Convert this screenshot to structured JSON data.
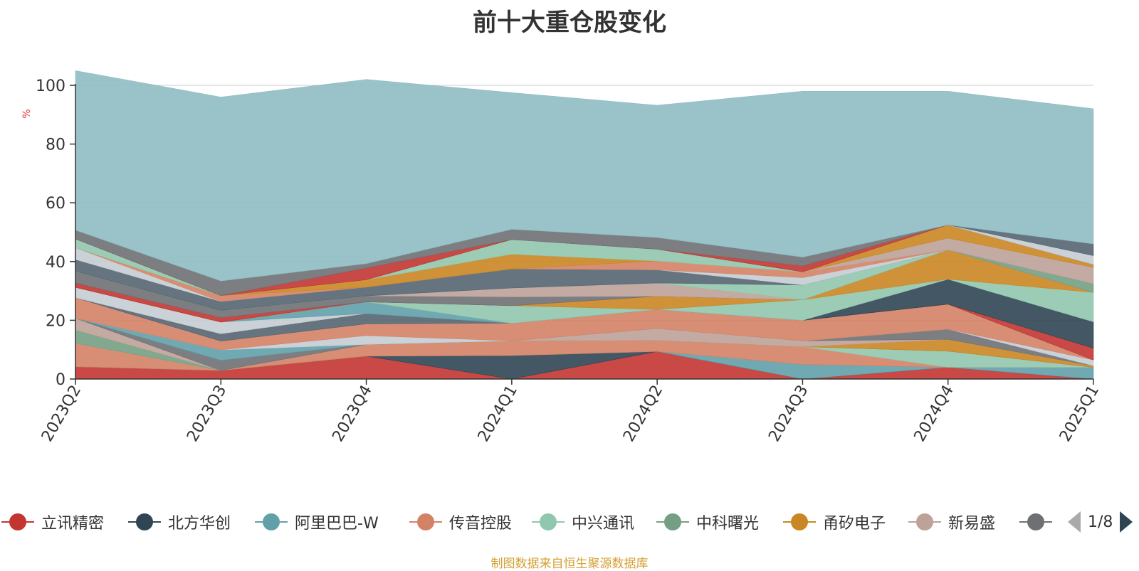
{
  "chart_data": {
    "type": "area",
    "title": "前十大重仓股变化",
    "ylabel": "%",
    "ylim": [
      0,
      100
    ],
    "yticks": [
      0,
      20,
      40,
      60,
      80,
      100
    ],
    "stacked": true,
    "grid": true,
    "categories": [
      "2023Q2",
      "2023Q3",
      "2023Q4",
      "2024Q1",
      "2024Q2",
      "2024Q3",
      "2024Q4",
      "2025Q1"
    ],
    "series": [
      {
        "name": "立讯精密",
        "color": "#c23531",
        "values": [
          4.2,
          2.9,
          7.8,
          0,
          9.4,
          0,
          4.0,
          0
        ]
      },
      {
        "name": "北方华创",
        "color": "#2f4554",
        "values": [
          0,
          0,
          0,
          8.0,
          0,
          0,
          0,
          0
        ]
      },
      {
        "name": "阿里巴巴-W",
        "color": "#61a0a8",
        "values": [
          0,
          0,
          0,
          0,
          0,
          5.0,
          0,
          4.0
        ]
      },
      {
        "name": "传音控股",
        "color": "#d48265",
        "values": [
          8.0,
          0,
          4.0,
          5.0,
          3.8,
          6.0,
          0,
          0
        ]
      },
      {
        "name": "中兴通讯",
        "color": "#91c7ae",
        "values": [
          0,
          0,
          0,
          0,
          0,
          0,
          5.5,
          0
        ]
      },
      {
        "name": "中科曙光",
        "color": "#749f83",
        "values": [
          4.5,
          0,
          0,
          0,
          0,
          0,
          0,
          0
        ]
      },
      {
        "name": "甬矽电子",
        "color": "#ca8622",
        "values": [
          0,
          0,
          0,
          0,
          0,
          0,
          4.0,
          0.5
        ]
      },
      {
        "name": "新易盛",
        "color": "#bda29a",
        "values": [
          4.0,
          0,
          0,
          0,
          4.0,
          2.0,
          0,
          0
        ]
      },
      {
        "name": "",
        "color": "#6e7074",
        "values": [
          0,
          3.5,
          0,
          0,
          0,
          0,
          3.5,
          0
        ]
      },
      {
        "name": "",
        "color": "#61a0a8",
        "values": [
          0,
          3.5,
          0,
          0,
          0,
          0,
          0,
          0
        ]
      },
      {
        "name": "",
        "color": "#c4ccd3",
        "values": [
          0,
          0,
          3.0,
          0,
          0,
          0,
          0,
          2.0
        ]
      },
      {
        "name": "",
        "color": "#d48265",
        "values": [
          7.0,
          3.0,
          4.0,
          6.0,
          6.5,
          7.0,
          8.5,
          0
        ]
      },
      {
        "name": "",
        "color": "#546570",
        "values": [
          0,
          2.5,
          3.5,
          0,
          0,
          0,
          0,
          0
        ]
      },
      {
        "name": "",
        "color": "#c23531",
        "values": [
          0,
          0,
          0,
          0,
          0,
          0,
          0,
          4.0
        ]
      },
      {
        "name": "",
        "color": "#2f4554",
        "values": [
          0,
          0,
          0,
          0,
          0,
          0,
          8.5,
          9.0
        ]
      },
      {
        "name": "",
        "color": "#c4ccd3",
        "values": [
          3.5,
          4.0,
          0,
          0,
          0,
          0,
          0,
          0
        ]
      },
      {
        "name": "",
        "color": "#61a0a8",
        "values": [
          0,
          0,
          4.0,
          0,
          0,
          0,
          0,
          0
        ]
      },
      {
        "name": "",
        "color": "#91c7ae",
        "values": [
          0,
          0,
          0,
          6.0,
          0,
          7.0,
          0,
          10.0
        ]
      },
      {
        "name": "",
        "color": "#ca8622",
        "values": [
          0,
          0,
          0,
          0,
          4.5,
          0,
          10.0,
          0
        ]
      },
      {
        "name": "",
        "color": "#c23531",
        "values": [
          1.5,
          1.5,
          0,
          0,
          0,
          0,
          0,
          0
        ]
      },
      {
        "name": "",
        "color": "#6e7074",
        "values": [
          4.0,
          2.5,
          2.0,
          3.0,
          0,
          0,
          0,
          0
        ]
      },
      {
        "name": "",
        "color": "#bda29a",
        "values": [
          0,
          0,
          0,
          3.0,
          4.5,
          0,
          0,
          0
        ]
      },
      {
        "name": "",
        "color": "#91c7ae",
        "values": [
          0,
          0,
          0,
          0,
          0,
          5.0,
          0,
          0
        ]
      },
      {
        "name": "",
        "color": "#749f83",
        "values": [
          0,
          0,
          0,
          0,
          0,
          0,
          0,
          3.0
        ]
      },
      {
        "name": "",
        "color": "#546570",
        "values": [
          4.0,
          3.0,
          3.0,
          6.5,
          4.5,
          0,
          0,
          0
        ]
      },
      {
        "name": "",
        "color": "#c4ccd3",
        "values": [
          4.0,
          0,
          0,
          0,
          0,
          2.5,
          0,
          0
        ]
      },
      {
        "name": "",
        "color": "#d48265",
        "values": [
          0,
          2.0,
          0,
          0,
          3.0,
          2.0,
          0,
          0
        ]
      },
      {
        "name": "",
        "color": "#bda29a",
        "values": [
          0,
          0,
          0,
          0,
          0,
          0,
          4.0,
          5.5
        ]
      },
      {
        "name": "",
        "color": "#ca8622",
        "values": [
          0,
          0,
          2.5,
          5.0,
          0,
          0,
          4.5,
          1.0
        ]
      },
      {
        "name": "",
        "color": "#91c7ae",
        "values": [
          3.0,
          0,
          0,
          5.0,
          4.0,
          0,
          0,
          0
        ]
      },
      {
        "name": "",
        "color": "#c23531",
        "values": [
          0,
          0,
          4.0,
          0,
          0,
          2.0,
          0,
          0
        ]
      },
      {
        "name": "",
        "color": "#6e7074",
        "values": [
          3.0,
          5.0,
          1.5,
          3.5,
          4.0,
          3.0,
          0,
          0
        ]
      },
      {
        "name": "",
        "color": "#c4ccd3",
        "values": [
          0,
          0,
          0,
          0,
          0,
          0,
          0,
          3.0
        ]
      },
      {
        "name": "",
        "color": "#546570",
        "values": [
          0,
          0,
          0,
          0,
          0,
          0,
          0,
          4.0
        ]
      },
      {
        "name": "",
        "color": "#8fbbc3",
        "values": [
          54.3,
          62.6,
          62.7,
          46.5,
          45.0,
          56.5,
          45.5,
          46.0
        ]
      },
      {
        "name": "",
        "color": "#c4ccd3",
        "values": [
          0,
          0,
          0,
          0,
          0,
          0,
          0,
          0
        ]
      }
    ]
  },
  "legend": {
    "items": [
      {
        "label": "立讯精密",
        "color": "#c23531"
      },
      {
        "label": "北方华创",
        "color": "#2f4554"
      },
      {
        "label": "阿里巴巴-W",
        "color": "#61a0a8"
      },
      {
        "label": "传音控股",
        "color": "#d48265"
      },
      {
        "label": "中兴通讯",
        "color": "#91c7ae"
      },
      {
        "label": "中科曙光",
        "color": "#749f83"
      },
      {
        "label": "甬矽电子",
        "color": "#ca8622"
      },
      {
        "label": "新易盛",
        "color": "#bda29a"
      },
      {
        "label": "",
        "color": "#6e7074"
      }
    ],
    "page": "1/8"
  },
  "source_note": "制图数据来自恒生聚源数据库"
}
